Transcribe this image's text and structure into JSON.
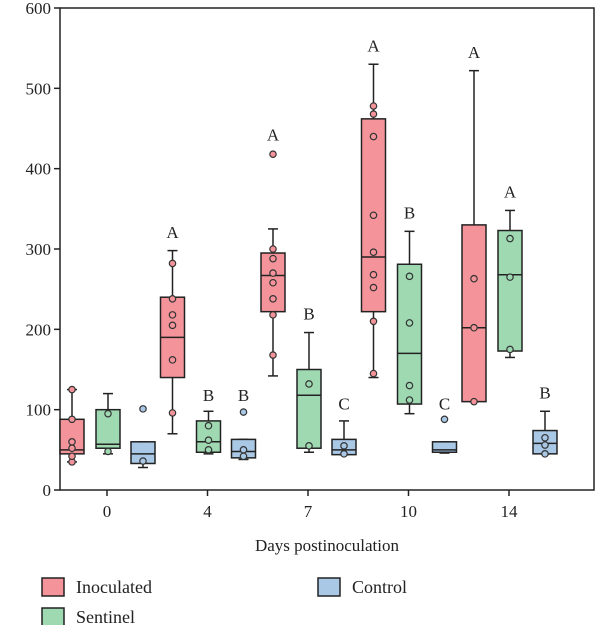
{
  "chart_data": {
    "type": "box",
    "xlabel": "Days postinoculation",
    "ylabel": "",
    "ylim": [
      0,
      600
    ],
    "yticks": [
      0,
      100,
      200,
      300,
      400,
      500,
      600
    ],
    "categories": [
      "0",
      "4",
      "7",
      "10",
      "14"
    ],
    "series": [
      {
        "name": "Inoculated",
        "color": "#f4949a",
        "boxes": [
          {
            "min": 35,
            "q1": 45,
            "median": 50,
            "q3": 88,
            "max": 125,
            "points": [
              35,
              42,
              52,
              60,
              88,
              125
            ]
          },
          {
            "min": 70,
            "q1": 140,
            "median": 190,
            "q3": 240,
            "max": 298,
            "points": [
              96,
              162,
              205,
              218,
              238,
              282
            ]
          },
          {
            "min": 142,
            "q1": 222,
            "median": 267,
            "q3": 295,
            "max": 325,
            "points": [
              168,
              218,
              238,
              258,
              270,
              288,
              300,
              418
            ]
          },
          {
            "min": 140,
            "q1": 222,
            "median": 290,
            "q3": 462,
            "max": 530,
            "points": [
              145,
              210,
              252,
              268,
              296,
              342,
              440,
              468,
              478
            ]
          },
          {
            "min": 110,
            "q1": 110,
            "median": 202,
            "q3": 330,
            "max": 522,
            "points": [
              110,
              202,
              263
            ]
          }
        ]
      },
      {
        "name": "Sentinel",
        "color": "#9ed9b2",
        "boxes": [
          {
            "min": 45,
            "q1": 52,
            "median": 57,
            "q3": 100,
            "max": 120,
            "points": [
              48,
              95
            ]
          },
          {
            "min": 45,
            "q1": 47,
            "median": 60,
            "q3": 86,
            "max": 98,
            "points": [
              50,
              62,
              80
            ]
          },
          {
            "min": 47,
            "q1": 52,
            "median": 118,
            "q3": 150,
            "max": 196,
            "points": [
              55,
              132
            ]
          },
          {
            "min": 95,
            "q1": 107,
            "median": 170,
            "q3": 281,
            "max": 322,
            "points": [
              112,
              130,
              208,
              266
            ]
          },
          {
            "min": 165,
            "q1": 173,
            "median": 268,
            "q3": 323,
            "max": 348,
            "points": [
              175,
              265,
              313
            ]
          }
        ]
      },
      {
        "name": "Control",
        "color": "#a9c8e6",
        "boxes": [
          {
            "min": 28,
            "q1": 33,
            "median": 45,
            "q3": 60,
            "max": 60,
            "points": [
              36,
              101
            ]
          },
          {
            "min": 38,
            "q1": 40,
            "median": 48,
            "q3": 63,
            "max": 63,
            "points": [
              42,
              50,
              97
            ]
          },
          {
            "min": 44,
            "q1": 44,
            "median": 50,
            "q3": 63,
            "max": 86,
            "points": [
              45,
              55
            ]
          },
          {
            "min": 46,
            "q1": 47,
            "median": 50,
            "q3": 60,
            "max": 60,
            "points": [
              88
            ]
          },
          {
            "min": 45,
            "q1": 45,
            "median": 58,
            "q3": 74,
            "max": 98,
            "points": [
              45,
              56,
              65
            ]
          }
        ]
      }
    ],
    "annotations": [
      {
        "category": "4",
        "series": "Inoculated",
        "text": "A",
        "y": 314
      },
      {
        "category": "4",
        "series": "Sentinel",
        "text": "B",
        "y": 111
      },
      {
        "category": "4",
        "series": "Control",
        "text": "B",
        "y": 111
      },
      {
        "category": "7",
        "series": "Inoculated",
        "text": "A",
        "y": 435
      },
      {
        "category": "7",
        "series": "Sentinel",
        "text": "B",
        "y": 212
      },
      {
        "category": "7",
        "series": "Control",
        "text": "C",
        "y": 100
      },
      {
        "category": "10",
        "series": "Inoculated",
        "text": "A",
        "y": 546
      },
      {
        "category": "10",
        "series": "Sentinel",
        "text": "B",
        "y": 338
      },
      {
        "category": "10",
        "series": "Control",
        "text": "C",
        "y": 100
      },
      {
        "category": "14",
        "series": "Inoculated",
        "text": "A",
        "y": 538
      },
      {
        "category": "14",
        "series": "Sentinel",
        "text": "A",
        "y": 364
      },
      {
        "category": "14",
        "series": "Control",
        "text": "B",
        "y": 114
      }
    ],
    "legend": [
      "Inoculated",
      "Control",
      "Sentinel"
    ],
    "legend_position": "bottom"
  }
}
